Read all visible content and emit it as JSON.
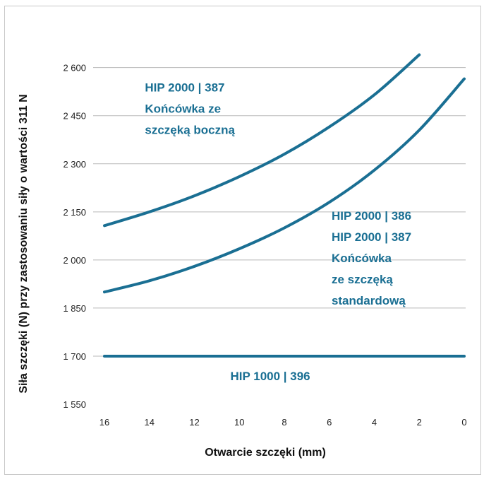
{
  "chart_data": {
    "type": "line",
    "title": "",
    "xlabel": "Otwarcie szczęki (mm)",
    "ylabel": "Siła szczęki (N) przy zastosowaniu siły o wartości 311 N",
    "xlim": [
      16,
      0
    ],
    "ylim": [
      1550,
      2650
    ],
    "x_ticks": [
      16,
      14,
      12,
      10,
      8,
      6,
      4,
      2,
      0
    ],
    "y_ticks": [
      1550,
      1700,
      1850,
      2000,
      2150,
      2300,
      2450,
      2600
    ],
    "x_tick_labels": [
      "16",
      "14",
      "12",
      "10",
      "8",
      "6",
      "4",
      "2",
      "0"
    ],
    "y_tick_labels": [
      "1 550",
      "1 700",
      "1 850",
      "2 000",
      "2 150",
      "2 300",
      "2 450",
      "2 600"
    ],
    "grid": "horizontal",
    "series_color": "#1a6f93",
    "series": [
      {
        "x": [
          16,
          14,
          12,
          10,
          8,
          6,
          4,
          2
        ],
        "y": [
          2107,
          2150,
          2200,
          2260,
          2330,
          2415,
          2515,
          2640
        ]
      },
      {
        "x": [
          16,
          14,
          12,
          10,
          8,
          6,
          4,
          2,
          0
        ],
        "y": [
          1900,
          1935,
          1980,
          2035,
          2100,
          2180,
          2280,
          2405,
          2565
        ]
      },
      {
        "x": [
          16,
          0
        ],
        "y": [
          1700,
          1700
        ]
      }
    ],
    "annotations": [
      {
        "lines": [
          "HIP 2000 | 387",
          "Końcówka ze",
          "szczęką boczną"
        ],
        "x": 14.2,
        "y": 2525
      },
      {
        "lines": [
          "HIP 2000 | 386",
          "HIP 2000 | 387",
          "Końcówka",
          "ze szczęką",
          "standardową"
        ],
        "x": 5.9,
        "y": 2125
      },
      {
        "lines": [
          "HIP 1000 | 396"
        ],
        "x": 10.4,
        "y": 1625
      }
    ]
  }
}
